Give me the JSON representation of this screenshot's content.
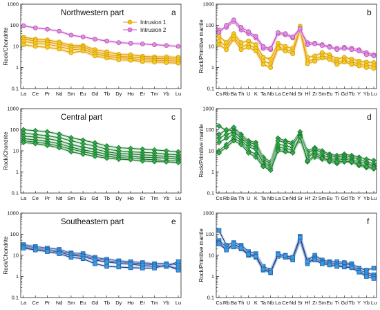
{
  "chart_data": [
    {
      "id": "a",
      "type": "line",
      "panel_letter": "a",
      "title": "Northwestern part",
      "xlabel": "",
      "ylabel": "Rock/Chondrite",
      "yscale": "log",
      "ylim": [
        0.1,
        1000
      ],
      "yticks": [
        "0.1",
        "1",
        "10",
        "100",
        "1000"
      ],
      "categories": [
        "La",
        "Ce",
        "Pr",
        "Nd",
        "Sm",
        "Eu",
        "Gd",
        "Tb",
        "Dy",
        "Ho",
        "Er",
        "Tm",
        "Yb",
        "Lu"
      ],
      "legend": [
        {
          "name": "Intrusion 1",
          "color": "#f2c200",
          "line": "#e0922a"
        },
        {
          "name": "Intrusion 2",
          "color": "#dd80dd",
          "line": "#c44cc4"
        }
      ],
      "series": [
        {
          "group": "Intrusion 1",
          "values": [
            27,
            22,
            20,
            16,
            11,
            11,
            7,
            5.5,
            4.2,
            4,
            3.4,
            3.2,
            3.2,
            3
          ]
        },
        {
          "group": "Intrusion 1",
          "values": [
            22,
            18,
            16,
            13,
            9,
            9.5,
            5.5,
            4.2,
            3.4,
            3.2,
            2.8,
            2.7,
            2.6,
            2.5
          ]
        },
        {
          "group": "Intrusion 1",
          "values": [
            17,
            14,
            12.5,
            10,
            7,
            7.5,
            4.5,
            3.4,
            2.9,
            2.7,
            2.3,
            2.2,
            2.1,
            2
          ]
        },
        {
          "group": "Intrusion 1",
          "values": [
            12,
            10,
            9,
            7.5,
            5,
            6,
            3.5,
            2.8,
            2.3,
            2.2,
            1.9,
            1.8,
            1.7,
            1.6
          ]
        },
        {
          "group": "Intrusion 2",
          "values": [
            95,
            75,
            65,
            52,
            34,
            28,
            22,
            18,
            15,
            14,
            13,
            12,
            11,
            10
          ]
        }
      ]
    },
    {
      "id": "b",
      "type": "line",
      "panel_letter": "b",
      "title": "",
      "xlabel": "",
      "ylabel": "Rock/Primitive mantle",
      "yscale": "log",
      "ylim": [
        0.1,
        1000
      ],
      "yticks": [
        "0.1",
        "1",
        "10",
        "100",
        "1000"
      ],
      "categories": [
        "Cs",
        "Rb",
        "Ba",
        "Th",
        "U",
        "K",
        "Ta",
        "Nb",
        "La",
        "Ce",
        "Nd",
        "Sr",
        "Hf",
        "Zr",
        "Sm",
        "Eu",
        "Ti",
        "Gd",
        "Tb",
        "Y",
        "Yb",
        "Lu"
      ],
      "series": [
        {
          "group": "Intrusion 1",
          "values": [
            30,
            15,
            40,
            15,
            18,
            12,
            3,
            2.5,
            14,
            10,
            8,
            90,
            3,
            3.5,
            5,
            4,
            2.5,
            3,
            2.5,
            2,
            1.8,
            1.7
          ]
        },
        {
          "group": "Intrusion 1",
          "values": [
            18,
            10,
            30,
            10,
            12,
            8,
            2,
            1.5,
            10,
            7,
            6,
            70,
            2,
            2.5,
            3.5,
            3,
            1.8,
            2.2,
            1.8,
            1.5,
            1.3,
            1.2
          ]
        },
        {
          "group": "Intrusion 1",
          "values": [
            12,
            7,
            22,
            7,
            9,
            6,
            1.4,
            1,
            8,
            6,
            4.5,
            60,
            1.5,
            2,
            2.8,
            2.4,
            1.4,
            1.8,
            1.4,
            1.2,
            1,
            0.9
          ]
        },
        {
          "group": "Intrusion 2",
          "values": [
            60,
            80,
            150,
            60,
            40,
            25,
            8,
            7,
            40,
            35,
            25,
            60,
            15,
            14,
            12,
            10,
            8,
            9,
            8,
            7,
            5,
            4
          ]
        },
        {
          "group": "Intrusion 2",
          "values": [
            45,
            100,
            180,
            80,
            50,
            30,
            10,
            8,
            45,
            40,
            28,
            70,
            12,
            13,
            11,
            9,
            7,
            8,
            7,
            6,
            4,
            3.5
          ]
        }
      ]
    },
    {
      "id": "c",
      "type": "line",
      "panel_letter": "c",
      "title": "Central part",
      "xlabel": "",
      "ylabel": "Rock/Chondrite",
      "yscale": "log",
      "ylim": [
        0.1,
        1000
      ],
      "yticks": [
        "0.1",
        "1",
        "10",
        "100",
        "1000"
      ],
      "categories": [
        "La",
        "Ce",
        "Pr",
        "Nd",
        "Sm",
        "Eu",
        "Gd",
        "Tb",
        "Dy",
        "Ho",
        "Er",
        "Tm",
        "Yb",
        "Lu"
      ],
      "series": [
        {
          "group": "Central",
          "values": [
            100,
            90,
            80,
            62,
            42,
            32,
            24,
            17,
            14,
            13,
            12,
            11,
            10,
            9
          ]
        },
        {
          "group": "Central",
          "values": [
            70,
            60,
            52,
            42,
            30,
            22,
            17,
            12,
            10,
            9,
            8.5,
            8,
            7,
            6.5
          ]
        },
        {
          "group": "Central",
          "values": [
            50,
            45,
            38,
            30,
            20,
            15,
            12,
            9,
            7.5,
            7,
            6.5,
            6,
            5.5,
            5
          ]
        },
        {
          "group": "Central",
          "values": [
            38,
            33,
            28,
            22,
            15,
            11,
            9,
            7,
            6,
            5.5,
            5,
            4.8,
            4.5,
            4
          ]
        },
        {
          "group": "Central",
          "values": [
            30,
            26,
            22,
            17,
            12,
            9,
            7,
            5.5,
            4.8,
            4.5,
            4,
            3.8,
            3.5,
            3.3
          ]
        },
        {
          "group": "Central",
          "values": [
            25,
            22,
            18,
            14,
            9,
            7,
            5.5,
            4.5,
            4,
            3.8,
            3.3,
            3.1,
            3,
            2.8
          ]
        }
      ]
    },
    {
      "id": "d",
      "type": "line",
      "panel_letter": "d",
      "title": "",
      "xlabel": "",
      "ylabel": "Rock/Primitive mantle",
      "yscale": "log",
      "ylim": [
        0.1,
        1000
      ],
      "yticks": [
        "0.1",
        "1",
        "10",
        "100",
        "1000"
      ],
      "categories": [
        "Cs",
        "Rb",
        "Ba",
        "Th",
        "U",
        "K",
        "Ta",
        "Nb",
        "La",
        "Ce",
        "Nd",
        "Sr",
        "Hf",
        "Zr",
        "Sm",
        "Eu",
        "Ti",
        "Gd",
        "Tb",
        "Y",
        "Yb",
        "Lu"
      ],
      "series": [
        {
          "group": "Central",
          "values": [
            150,
            90,
            130,
            60,
            30,
            25,
            5,
            3,
            40,
            30,
            25,
            80,
            10,
            14,
            10,
            7,
            6,
            7,
            6,
            5,
            4,
            3.5
          ]
        },
        {
          "group": "Central",
          "values": [
            60,
            100,
            90,
            50,
            25,
            20,
            4,
            2.5,
            30,
            25,
            20,
            60,
            8,
            12,
            8,
            6,
            5,
            6,
            5,
            4,
            3,
            2.5
          ]
        },
        {
          "group": "Central",
          "values": [
            40,
            60,
            80,
            40,
            20,
            15,
            3,
            2,
            20,
            18,
            14,
            40,
            6,
            9,
            6,
            5,
            4,
            5,
            4,
            3,
            2.5,
            2
          ]
        },
        {
          "group": "Central",
          "values": [
            25,
            40,
            60,
            30,
            15,
            12,
            2.5,
            1.8,
            15,
            13,
            11,
            30,
            5,
            8,
            5,
            4,
            3.5,
            4,
            3.5,
            2.5,
            2,
            1.8
          ]
        },
        {
          "group": "Central",
          "values": [
            10,
            20,
            40,
            25,
            10,
            7,
            2,
            1.5,
            12,
            10,
            9,
            50,
            3,
            5,
            4,
            3,
            2.5,
            3,
            2.8,
            2,
            1.6,
            1.4
          ]
        },
        {
          "group": "Central",
          "values": [
            8,
            15,
            30,
            20,
            8,
            5,
            1.8,
            1.2,
            10,
            9,
            8,
            45,
            3.5,
            6,
            4.5,
            3.5,
            3,
            3.2,
            3,
            2.2,
            1.8,
            1.5
          ]
        }
      ]
    },
    {
      "id": "e",
      "type": "line",
      "panel_letter": "e",
      "title": "Southeastern part",
      "xlabel": "",
      "ylabel": "Rock/Chondrite",
      "yscale": "log",
      "ylim": [
        0.1,
        1000
      ],
      "yticks": [
        "0.1",
        "1",
        "10",
        "100",
        "1000"
      ],
      "categories": [
        "La",
        "Ce",
        "Pr",
        "Nd",
        "Sm",
        "Eu",
        "Gd",
        "Tb",
        "Dy",
        "Ho",
        "Er",
        "Tm",
        "Yb",
        "Lu"
      ],
      "series": [
        {
          "group": "Southeastern",
          "values": [
            32,
            26,
            22,
            19,
            13,
            12,
            8,
            6.5,
            5.5,
            5,
            4.5,
            4,
            4,
            3.5
          ]
        },
        {
          "group": "Southeastern",
          "values": [
            28,
            23,
            19,
            16,
            12,
            10,
            7,
            5.5,
            4.8,
            4.3,
            4,
            3.5,
            3,
            5
          ]
        },
        {
          "group": "Southeastern",
          "values": [
            25,
            20,
            17,
            14,
            10,
            9,
            6,
            4.8,
            4.2,
            3.8,
            3.3,
            3,
            3,
            2.5
          ]
        },
        {
          "group": "Southeastern",
          "values": [
            22,
            18,
            15,
            12,
            8,
            7,
            4,
            3,
            2.8,
            2.6,
            2.5,
            2.5,
            3.5,
            2
          ]
        }
      ]
    },
    {
      "id": "f",
      "type": "line",
      "panel_letter": "f",
      "title": "",
      "xlabel": "",
      "ylabel": "Rock/Primitive mantle",
      "yscale": "log",
      "ylim": [
        0.1,
        1000
      ],
      "yticks": [
        "0.1",
        "1",
        "10",
        "100",
        "1000"
      ],
      "categories": [
        "Cs",
        "Rb",
        "Ba",
        "Th",
        "U",
        "K",
        "Ta",
        "Nb",
        "La",
        "Ce",
        "Nd",
        "Sr",
        "Hf",
        "Zr",
        "Sm",
        "Eu",
        "Ti",
        "Gd",
        "Tb",
        "Y",
        "Yb",
        "Lu"
      ],
      "series": [
        {
          "group": "Southeastern",
          "values": [
            150,
            30,
            40,
            30,
            15,
            12,
            3,
            2,
            10,
            10,
            8,
            80,
            6,
            10,
            6,
            5,
            5,
            4.5,
            4,
            2.5,
            2,
            2.5
          ]
        },
        {
          "group": "Southeastern",
          "values": [
            50,
            25,
            30,
            25,
            12,
            10,
            2.5,
            1.8,
            12,
            9,
            7,
            60,
            5,
            8,
            5,
            4.5,
            4,
            4,
            3.5,
            2,
            1.5,
            1.2
          ]
        },
        {
          "group": "Southeastern",
          "values": [
            40,
            20,
            25,
            20,
            10,
            8,
            2,
            1.5,
            9,
            8,
            6,
            50,
            4,
            7,
            4.5,
            4,
            3.5,
            3,
            3,
            1.8,
            1.2,
            1
          ]
        },
        {
          "group": "Southeastern",
          "values": [
            35,
            18,
            35,
            22,
            11,
            9,
            2.2,
            1.6,
            11,
            9.5,
            8,
            70,
            5,
            6,
            4,
            3.5,
            3,
            2.8,
            2.6,
            1.6,
            1,
            0.8
          ]
        }
      ]
    }
  ],
  "styles": {
    "Intrusion 1": {
      "line": "#e0922a",
      "fill": "#f7cc1e",
      "stroke": "#c99a06",
      "band": "#f7d54a",
      "marker": "circle"
    },
    "Intrusion 2": {
      "line": "#c44cc4",
      "fill": "#e08ee0",
      "stroke": "#b050b0",
      "band": "#f0c0f0",
      "marker": "circle"
    },
    "Central": {
      "line": "#1d6b2c",
      "fill": "#2fb24b",
      "stroke": "#1b6b2a",
      "band": "#a9dfb4",
      "marker": "diamond"
    },
    "Southeastern": {
      "line": "#2a2a70",
      "fill": "#3a9be0",
      "stroke": "#1f5fa8",
      "band": "#9bc8ee",
      "marker": "square"
    }
  }
}
